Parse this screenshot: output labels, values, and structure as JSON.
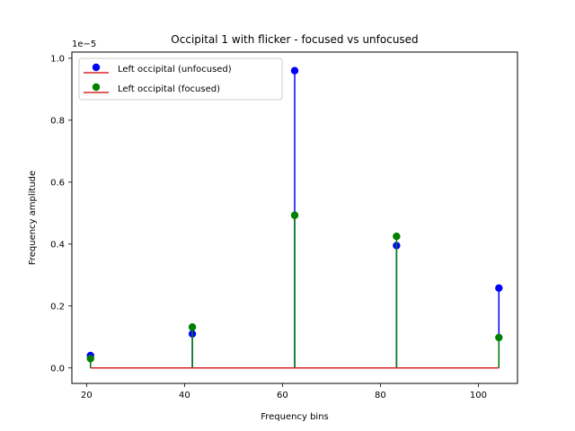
{
  "chart_data": {
    "type": "stem",
    "title": "Occipital 1 with flicker - focused vs unfocused",
    "xlabel": "Frequency bins",
    "ylabel": "Frequency amplitude",
    "y_offset_label": "1e−5",
    "y_scale": 1e-05,
    "xlim": [
      17,
      108
    ],
    "ylim": [
      -0.05,
      1.02
    ],
    "x_ticks": [
      20,
      40,
      60,
      80,
      100
    ],
    "x_tick_labels": [
      "20",
      "40",
      "60",
      "80",
      "100"
    ],
    "y_ticks": [
      0.0,
      0.2,
      0.4,
      0.6,
      0.8,
      1.0
    ],
    "y_tick_labels": [
      "0.0",
      "0.2",
      "0.4",
      "0.6",
      "0.8",
      "1.0"
    ],
    "grid": false,
    "legend_position": "upper-left",
    "baseline": {
      "value": 0,
      "color": "#d62728",
      "x_range": [
        20.8,
        104.2
      ]
    },
    "series": [
      {
        "name": "Left occipital (unfocused)",
        "color": "#0000ff",
        "x": [
          20.8,
          41.6,
          62.5,
          83.3,
          104.2
        ],
        "y": [
          0.04,
          0.11,
          0.96,
          0.395,
          0.258
        ]
      },
      {
        "name": "Left occipital (focused)",
        "color": "#008000",
        "x": [
          20.8,
          41.6,
          62.5,
          83.3,
          104.2
        ],
        "y": [
          0.03,
          0.132,
          0.493,
          0.425,
          0.098
        ]
      }
    ]
  }
}
